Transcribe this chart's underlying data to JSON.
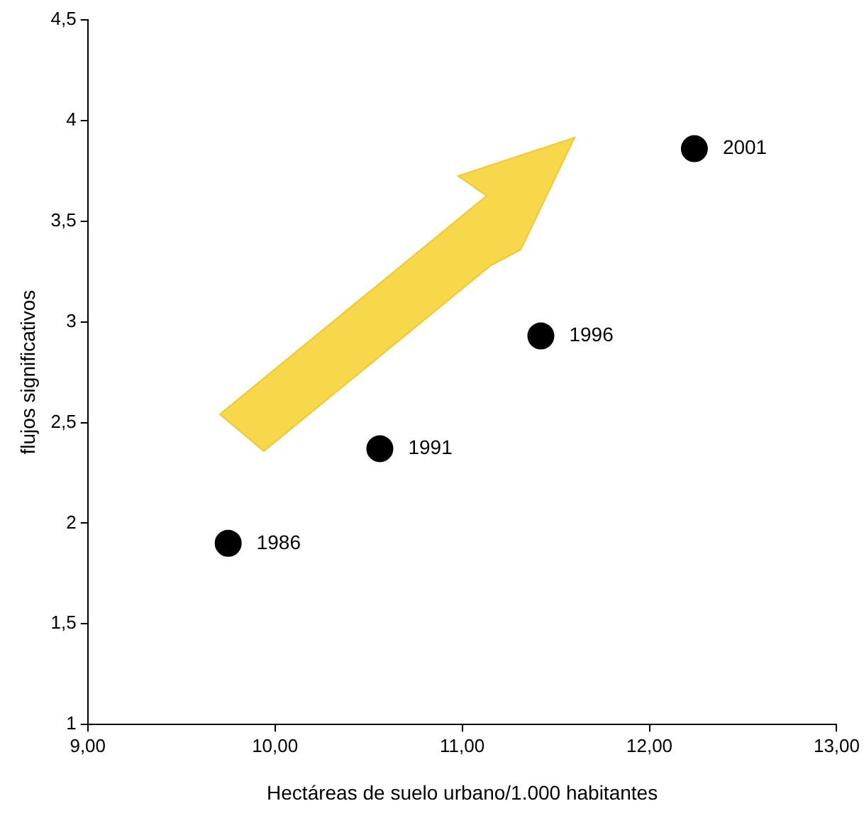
{
  "chart_data": {
    "type": "scatter",
    "xlabel": "Hectáreas de suelo urbano/1.000 habitantes",
    "ylabel": "flujos significativos",
    "x": [
      9.75,
      10.56,
      11.42,
      12.24
    ],
    "values": [
      1.9,
      2.37,
      2.93,
      3.86
    ],
    "color": "#000000",
    "marker": "circle",
    "xlim": [
      9,
      13
    ],
    "xticks": [
      {
        "value": 9,
        "label": "9,00"
      },
      {
        "value": 10,
        "label": "10,00"
      },
      {
        "value": 11,
        "label": "11,00"
      },
      {
        "value": 12,
        "label": "12,00"
      },
      {
        "value": 13,
        "label": "13,00"
      }
    ],
    "ylim": [
      1,
      4.5
    ],
    "yticks": [
      1,
      {
        "value": 1.5,
        "label": "1,5"
      },
      2,
      {
        "value": 2.5,
        "label": "2,5"
      },
      3,
      {
        "value": 3.5,
        "label": "3,5"
      },
      4,
      {
        "value": 4.5,
        "label": "4,5"
      }
    ],
    "annotations": [
      {
        "text": "1986",
        "x": 9.75,
        "y": 1.9
      },
      {
        "text": "1991",
        "x": 10.56,
        "y": 2.37
      },
      {
        "text": "1996",
        "x": 11.42,
        "y": 2.93
      },
      {
        "text": "2001",
        "x": 12.24,
        "y": 3.86
      }
    ],
    "legend": false
  }
}
